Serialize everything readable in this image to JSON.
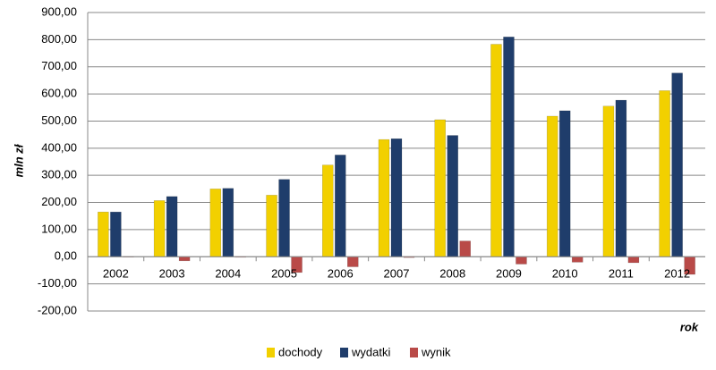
{
  "chart_data": {
    "type": "bar",
    "y_label": "mln zł",
    "x_label": "rok",
    "categories": [
      "2002",
      "2003",
      "2004",
      "2005",
      "2006",
      "2007",
      "2008",
      "2009",
      "2010",
      "2011",
      "2012"
    ],
    "series": [
      {
        "name": "dochody",
        "color": "#f2d000",
        "values": [
          165,
          207,
          250,
          227,
          338,
          432,
          505,
          783,
          518,
          555,
          612
        ]
      },
      {
        "name": "wydatki",
        "color": "#1f3d6b",
        "values": [
          165,
          222,
          252,
          285,
          375,
          435,
          447,
          810,
          538,
          577,
          677
        ]
      },
      {
        "name": "wynik",
        "color": "#b94a48",
        "values": [
          0,
          -15,
          -2,
          -58,
          -37,
          -3,
          58,
          -27,
          -20,
          -22,
          -65
        ]
      }
    ],
    "ylim": [
      -200,
      900
    ],
    "yticks": [
      {
        "value": -200,
        "label": "-200,00"
      },
      {
        "value": -100,
        "label": "-100,00"
      },
      {
        "value": 0,
        "label": "0,00"
      },
      {
        "value": 100,
        "label": "100,00"
      },
      {
        "value": 200,
        "label": "200,00"
      },
      {
        "value": 300,
        "label": "300,00"
      },
      {
        "value": 400,
        "label": "400,00"
      },
      {
        "value": 500,
        "label": "500,00"
      },
      {
        "value": 600,
        "label": "600,00"
      },
      {
        "value": 700,
        "label": "700,00"
      },
      {
        "value": 800,
        "label": "800,00"
      },
      {
        "value": 900,
        "label": "900,00"
      }
    ],
    "grid": true,
    "legend": "bottom"
  }
}
